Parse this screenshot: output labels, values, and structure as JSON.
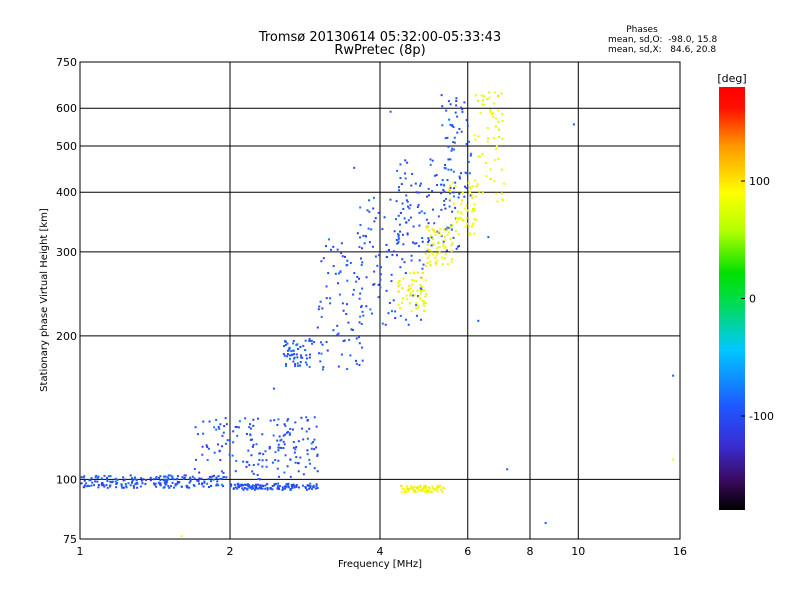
{
  "chart_data": {
    "type": "scatter",
    "title": "Tromsø 20130614 05:32:00-05:33:43",
    "subtitle": "RwPretec (8p)",
    "xlabel": "Frequency [MHz]",
    "ylabel": "Stationary phase Virtual Height [km]",
    "x_scale": "log",
    "y_scale": "log",
    "xlim": [
      1,
      16
    ],
    "ylim": [
      75,
      750
    ],
    "x_ticks": [
      "1",
      "2",
      "4",
      "6",
      "8",
      "10",
      "16"
    ],
    "y_ticks": [
      "75",
      "100",
      "200",
      "300",
      "400",
      "500",
      "600",
      "750"
    ],
    "grid": true,
    "stats": {
      "heading": "Phases",
      "line_o": "mean, sd,O:  -98.0, 15.8",
      "line_x": "mean, sd,X:   84.6, 20.8"
    },
    "colorbar": {
      "label": "[deg]",
      "ticks": [
        "100",
        "0",
        "-100"
      ],
      "range": [
        -180,
        180
      ]
    },
    "series": [
      {
        "mode": "O",
        "mean_phase_deg": -98.0,
        "clusters": [
          {
            "freq": [
              1.0,
              1.95
            ],
            "height": [
              96,
              102
            ]
          },
          {
            "freq": [
              1.7,
              3.0
            ],
            "height": [
              100,
              135
            ]
          },
          {
            "freq": [
              2.0,
              3.0
            ],
            "height": [
              95,
              98
            ]
          },
          {
            "freq": [
              2.55,
              2.95
            ],
            "height": [
              172,
              200
            ]
          },
          {
            "freq": [
              3.0,
              3.7
            ],
            "height": [
              170,
              320
            ]
          },
          {
            "freq": [
              3.6,
              4.9
            ],
            "height": [
              210,
              390
            ]
          },
          {
            "freq": [
              4.3,
              5.8
            ],
            "height": [
              300,
              470
            ]
          },
          {
            "freq": [
              5.3,
              6.1
            ],
            "height": [
              380,
              640
            ]
          }
        ],
        "points": [
          {
            "x": 4.2,
            "y": 590
          },
          {
            "x": 3.55,
            "y": 450
          },
          {
            "x": 15.5,
            "y": 165
          },
          {
            "x": 8.6,
            "y": 81
          },
          {
            "x": 9.8,
            "y": 555
          },
          {
            "x": 6.3,
            "y": 215
          },
          {
            "x": 6.6,
            "y": 322
          },
          {
            "x": 7.2,
            "y": 105
          },
          {
            "x": 2.45,
            "y": 155
          }
        ]
      },
      {
        "mode": "X",
        "mean_phase_deg": 84.6,
        "clusters": [
          {
            "freq": [
              4.35,
              4.95
            ],
            "height": [
              225,
              275
            ]
          },
          {
            "freq": [
              4.9,
              5.6
            ],
            "height": [
              280,
              340
            ]
          },
          {
            "freq": [
              5.5,
              6.3
            ],
            "height": [
              325,
              420
            ]
          },
          {
            "freq": [
              6.2,
              7.1
            ],
            "height": [
              380,
              650
            ]
          },
          {
            "freq": [
              4.4,
              5.4
            ],
            "height": [
              94,
              97
            ]
          }
        ],
        "points": [
          {
            "x": 15.5,
            "y": 110
          },
          {
            "x": 1.6,
            "y": 76
          }
        ]
      }
    ]
  }
}
